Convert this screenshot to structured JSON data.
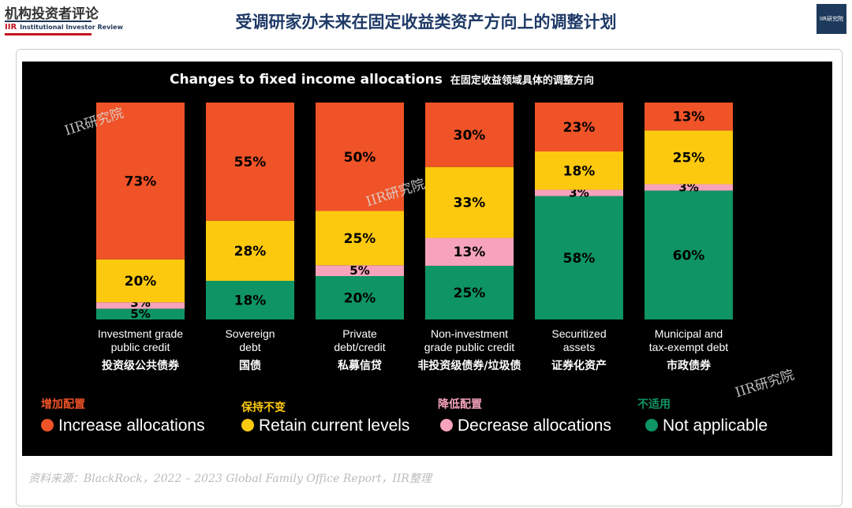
{
  "header": {
    "logo_cn": "机构投资者评论",
    "logo_en": "Institutional Investor Review",
    "logo_mark": "IIR",
    "title": "受调研家办未来在固定收益类资产方向上的调整计划",
    "badge": "IIR研究院"
  },
  "watermark": "IIR研究院",
  "source": "资料来源：BlackRock，2022 – 2023 Global Family Office Report，IIR整理",
  "chart_data": {
    "type": "bar",
    "stacked": true,
    "title": "Changes to fixed income allocations",
    "subtitle": "在固定收益领域具体的调整方向",
    "categories": [
      {
        "en1": "Investment grade",
        "en2": "public credit",
        "cn": "投资级公共债券"
      },
      {
        "en1": "Sovereign",
        "en2": "debt",
        "cn": "国债"
      },
      {
        "en1": "Private",
        "en2": "debt/credit",
        "cn": "私募信贷"
      },
      {
        "en1": "Non-investment",
        "en2": "grade public credit",
        "cn": "非投资级债券/垃圾债"
      },
      {
        "en1": "Securitized",
        "en2": "assets",
        "cn": "证券化资产"
      },
      {
        "en1": "Municipal and",
        "en2": "tax-exempt debt",
        "cn": "市政债券"
      }
    ],
    "series": [
      {
        "name": "Not applicable",
        "name_cn": "不适用",
        "color": "#0e9563",
        "values": [
          5,
          18,
          20,
          25,
          58,
          60
        ]
      },
      {
        "name": "Decrease allocations",
        "name_cn": "降低配置",
        "color": "#f6a3bb",
        "values": [
          3,
          0,
          5,
          13,
          3,
          3
        ]
      },
      {
        "name": "Retain current levels",
        "name_cn": "保持不变",
        "color": "#fdc90f",
        "values": [
          20,
          28,
          25,
          33,
          18,
          25
        ]
      },
      {
        "name": "Increase allocations",
        "name_cn": "增加配置",
        "color": "#ef5327",
        "values": [
          73,
          55,
          50,
          30,
          23,
          13
        ]
      }
    ],
    "unit": "%",
    "legend": "bottom"
  }
}
